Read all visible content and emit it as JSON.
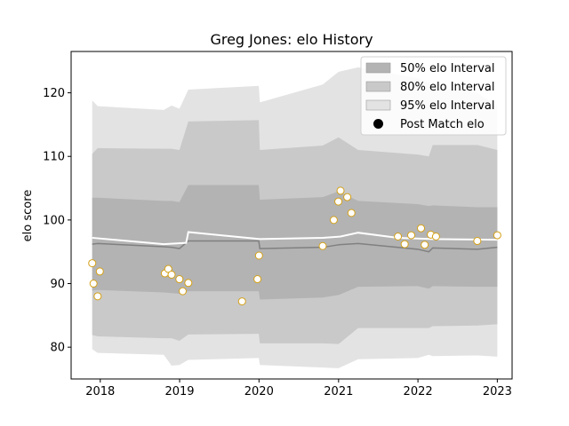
{
  "chart_data": {
    "type": "area",
    "title": "Greg Jones: elo History",
    "xlabel": "",
    "ylabel": "elo score",
    "xlim": [
      "2017-08-20",
      "2023-03-10"
    ],
    "ylim": [
      75,
      126.5
    ],
    "x_ticks": [
      {
        "date": "2018-01-01",
        "label": "2018"
      },
      {
        "date": "2019-01-01",
        "label": "2019"
      },
      {
        "date": "2020-01-01",
        "label": "2020"
      },
      {
        "date": "2021-01-01",
        "label": "2021"
      },
      {
        "date": "2022-01-01",
        "label": "2022"
      },
      {
        "date": "2023-01-01",
        "label": "2023"
      }
    ],
    "y_ticks": [
      80,
      90,
      100,
      110,
      120
    ],
    "legend_position": "top-right",
    "legend": [
      {
        "label": "50% elo Interval",
        "kind": "patch",
        "color": "#b3b3b3"
      },
      {
        "label": "80% elo Interval",
        "kind": "patch",
        "color": "#c9c9c9"
      },
      {
        "label": "95% elo Interval",
        "kind": "patch",
        "color": "#e3e3e3"
      },
      {
        "label": "Post Match elo",
        "kind": "dot",
        "color": "#000000"
      }
    ],
    "band_dates": [
      "2017-11-25",
      "2017-12-20",
      "2018-10-20",
      "2018-11-25",
      "2018-12-31",
      "2019-02-10",
      "2019-12-31",
      "2020-01-05",
      "2020-10-20",
      "2021-01-01",
      "2021-04-01",
      "2021-12-31",
      "2022-02-20",
      "2022-03-10",
      "2022-10-01",
      "2023-01-01"
    ],
    "center": [
      96.2,
      96.3,
      95.8,
      95.7,
      95.5,
      96.7,
      96.7,
      95.5,
      95.7,
      96.1,
      96.3,
      95.4,
      95.0,
      95.6,
      95.4,
      95.7
    ],
    "bands": [
      {
        "name": "50% elo Interval",
        "color": "#b3b3b3",
        "upper": [
          103.5,
          103.5,
          103.0,
          103.0,
          102.8,
          105.5,
          105.5,
          103.2,
          103.6,
          104.5,
          103.0,
          102.5,
          102.2,
          102.3,
          102.0,
          102.0
        ],
        "lower": [
          88.9,
          89.0,
          88.6,
          88.5,
          88.4,
          88.8,
          88.8,
          87.5,
          87.8,
          88.2,
          89.5,
          89.6,
          89.2,
          89.6,
          89.5,
          89.5
        ]
      },
      {
        "name": "80% elo Interval",
        "color": "#c9c9c9",
        "upper": [
          110.4,
          111.3,
          111.2,
          111.2,
          111.0,
          115.5,
          115.7,
          111.0,
          111.7,
          113.0,
          111.0,
          110.3,
          110.0,
          111.8,
          111.8,
          111.0
        ],
        "lower": [
          81.9,
          81.7,
          81.4,
          81.4,
          81.0,
          82.0,
          82.1,
          80.6,
          80.6,
          80.5,
          83.0,
          83.0,
          83.0,
          83.3,
          83.4,
          83.6
        ]
      },
      {
        "name": "95% elo Interval",
        "color": "#e3e3e3",
        "upper": [
          118.8,
          117.9,
          117.3,
          118.0,
          117.5,
          120.5,
          121.1,
          118.5,
          121.3,
          123.3,
          124.0,
          122.3,
          121.6,
          121.0,
          120.0,
          118.0
        ],
        "lower": [
          79.7,
          79.1,
          78.8,
          77.1,
          77.2,
          78.0,
          78.3,
          77.2,
          76.8,
          76.7,
          78.1,
          78.3,
          78.8,
          78.6,
          78.7,
          78.5
        ]
      }
    ],
    "post_match_line": {
      "color": "#ffffff",
      "x": [
        "2017-11-25",
        "2018-10-20",
        "2019-01-31",
        "2019-02-10",
        "2020-01-05",
        "2020-10-20",
        "2021-01-10",
        "2021-04-01",
        "2021-10-01",
        "2022-03-10",
        "2023-01-01"
      ],
      "y": [
        97.2,
        96.2,
        96.4,
        98.1,
        97.0,
        97.2,
        97.4,
        98.0,
        97.2,
        97.0,
        96.9
      ]
    },
    "points": {
      "name": "Post Match elo",
      "edge_color": "#d4a016",
      "face_color": "#ffffff",
      "x": [
        "2017-11-25",
        "2017-12-01",
        "2017-12-20",
        "2017-12-30",
        "2018-10-25",
        "2018-11-10",
        "2018-11-25",
        "2018-12-31",
        "2019-01-15",
        "2019-02-10",
        "2019-10-15",
        "2019-12-25",
        "2020-01-01",
        "2020-10-20",
        "2020-12-10",
        "2020-12-31",
        "2021-01-10",
        "2021-02-10",
        "2021-03-01",
        "2021-10-01",
        "2021-11-01",
        "2021-12-01",
        "2022-01-15",
        "2022-02-01",
        "2022-03-01",
        "2022-03-25",
        "2022-10-01",
        "2023-01-01"
      ],
      "y": [
        93.2,
        90.0,
        88.0,
        91.9,
        91.6,
        92.3,
        91.4,
        90.7,
        88.8,
        90.1,
        87.2,
        90.7,
        94.4,
        95.9,
        100.0,
        102.9,
        104.6,
        103.6,
        101.1,
        97.4,
        96.2,
        97.6,
        98.7,
        96.1,
        97.7,
        97.4,
        96.7,
        97.6
      ]
    }
  }
}
